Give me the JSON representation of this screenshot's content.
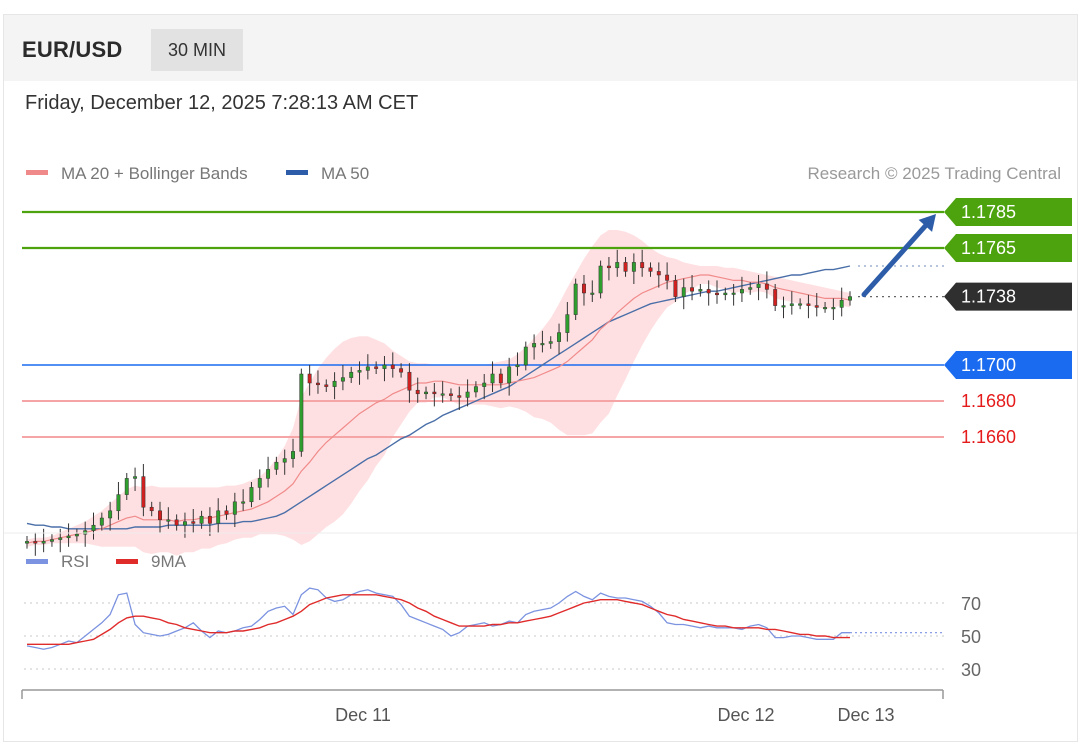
{
  "header": {
    "pair": "EUR/USD",
    "timeframe": "30 MIN",
    "datetime": "Friday, December 12, 2025 7:28:13 AM CET"
  },
  "legend": {
    "ma20_label": "MA 20 + Bollinger Bands",
    "ma50_label": "MA 50",
    "credit": "Research © 2025 Trading Central"
  },
  "rsi_legend": {
    "rsi_label": "RSI",
    "ma_label": "9MA"
  },
  "colors": {
    "resistance": "#4ca30d",
    "pivot": "#1a6bf0",
    "support": "#e51a1a",
    "support_line": "#f5a5a5",
    "current": "#2f2f2f",
    "candle_up": "#2e9e2e",
    "candle_down": "#d02020",
    "ma20": "#f08a8a",
    "bollinger": "#ffd6d8",
    "ma50": "#4a6fa8",
    "rsi": "#7b93e0",
    "rsi_ma": "#e02b2b",
    "arrow": "#2d5da8"
  },
  "chart_data": [
    {
      "type": "candlestick",
      "title": "EUR/USD 30 MIN",
      "x_tick_labels": [
        "Dec 11",
        "Dec 12",
        "Dec 13"
      ],
      "y_range": [
        1.162,
        1.181
      ],
      "levels": [
        {
          "value": 1.1785,
          "label": "1.1785",
          "kind": "resistance"
        },
        {
          "value": 1.1765,
          "label": "1.1765",
          "kind": "resistance"
        },
        {
          "value": 1.1738,
          "label": "1.1738",
          "kind": "current"
        },
        {
          "value": 1.17,
          "label": "1.1700",
          "kind": "pivot"
        },
        {
          "value": 1.168,
          "label": "1.1680",
          "kind": "support"
        },
        {
          "value": 1.166,
          "label": "1.1660",
          "kind": "support"
        }
      ],
      "close": [
        1.1602,
        1.1601,
        1.1602,
        1.1603,
        1.1604,
        1.1605,
        1.1606,
        1.1608,
        1.1611,
        1.1615,
        1.1619,
        1.1628,
        1.1637,
        1.1638,
        1.1621,
        1.1619,
        1.1614,
        1.1614,
        1.1611,
        1.1613,
        1.1612,
        1.1616,
        1.1612,
        1.1619,
        1.1617,
        1.1624,
        1.1624,
        1.1632,
        1.1637,
        1.1642,
        1.1646,
        1.1648,
        1.1652,
        1.1695,
        1.169,
        1.1689,
        1.1688,
        1.1691,
        1.1693,
        1.1696,
        1.1697,
        1.1699,
        1.1698,
        1.17,
        1.1698,
        1.1696,
        1.1686,
        1.1684,
        1.1685,
        1.1684,
        1.1684,
        1.1683,
        1.1682,
        1.1685,
        1.1688,
        1.169,
        1.1695,
        1.169,
        1.1699,
        1.17,
        1.171,
        1.1712,
        1.1712,
        1.1713,
        1.1718,
        1.1728,
        1.1745,
        1.174,
        1.174,
        1.1755,
        1.1754,
        1.1757,
        1.1752,
        1.1757,
        1.1754,
        1.1752,
        1.175,
        1.1747,
        1.1738,
        1.1743,
        1.1741,
        1.1742,
        1.174,
        1.1739,
        1.174,
        1.174,
        1.1742,
        1.1743,
        1.1745,
        1.1742,
        1.1733,
        1.1733,
        1.1734,
        1.1734,
        1.1733,
        1.1732,
        1.1732,
        1.1732,
        1.1736,
        1.1738
      ],
      "ma20": [
        1.1601,
        1.1602,
        1.1602,
        1.1603,
        1.1604,
        1.1605,
        1.1606,
        1.1607,
        1.1608,
        1.1609,
        1.1611,
        1.1613,
        1.1615,
        1.1616,
        1.1614,
        1.1614,
        1.1614,
        1.1614,
        1.1613,
        1.1614,
        1.1614,
        1.1615,
        1.1615,
        1.1616,
        1.1617,
        1.1618,
        1.1619,
        1.162,
        1.1622,
        1.1624,
        1.1627,
        1.163,
        1.1634,
        1.1641,
        1.1646,
        1.1652,
        1.1657,
        1.1661,
        1.1665,
        1.1669,
        1.1673,
        1.1676,
        1.1679,
        1.1681,
        1.1684,
        1.1686,
        1.1688,
        1.169,
        1.169,
        1.1691,
        1.1691,
        1.169,
        1.1689,
        1.1689,
        1.1689,
        1.1689,
        1.1689,
        1.1689,
        1.169,
        1.1691,
        1.1692,
        1.1693,
        1.1695,
        1.1697,
        1.1699,
        1.1702,
        1.1706,
        1.171,
        1.1714,
        1.172,
        1.1724,
        1.1729,
        1.1733,
        1.1737,
        1.174,
        1.1742,
        1.1744,
        1.1746,
        1.1747,
        1.1748,
        1.1749,
        1.175,
        1.175,
        1.1749,
        1.1748,
        1.1747,
        1.1747,
        1.1746,
        1.1746,
        1.1745,
        1.1743,
        1.1742,
        1.1741,
        1.174,
        1.1739,
        1.1738,
        1.1737,
        1.1737,
        1.1737,
        1.1736
      ],
      "bb_upper": [
        1.1603,
        1.1604,
        1.1604,
        1.1605,
        1.1607,
        1.1609,
        1.1611,
        1.1613,
        1.1616,
        1.1619,
        1.1623,
        1.1627,
        1.1631,
        1.1633,
        1.1632,
        1.1633,
        1.1632,
        1.1632,
        1.1632,
        1.1632,
        1.1632,
        1.1632,
        1.1632,
        1.1632,
        1.1633,
        1.1633,
        1.1634,
        1.1636,
        1.1638,
        1.1642,
        1.1648,
        1.1655,
        1.1665,
        1.1682,
        1.169,
        1.1698,
        1.1704,
        1.1709,
        1.1713,
        1.1715,
        1.1716,
        1.1716,
        1.1714,
        1.1712,
        1.1708,
        1.1705,
        1.1702,
        1.1701,
        1.1701,
        1.17,
        1.17,
        1.17,
        1.17,
        1.17,
        1.17,
        1.17,
        1.1701,
        1.1702,
        1.1703,
        1.1706,
        1.171,
        1.1715,
        1.172,
        1.1726,
        1.1734,
        1.1743,
        1.1751,
        1.1759,
        1.1766,
        1.1772,
        1.1775,
        1.1775,
        1.1774,
        1.1772,
        1.1769,
        1.1765,
        1.1762,
        1.176,
        1.1759,
        1.1757,
        1.1756,
        1.1755,
        1.1755,
        1.1755,
        1.1754,
        1.1754,
        1.1753,
        1.1752,
        1.1751,
        1.175,
        1.1749,
        1.1748,
        1.1747,
        1.1746,
        1.1745,
        1.1744,
        1.1743,
        1.1742,
        1.1741,
        1.174
      ],
      "bb_lower": [
        1.1599,
        1.16,
        1.16,
        1.1601,
        1.1601,
        1.1601,
        1.1601,
        1.1601,
        1.16,
        1.1599,
        1.1599,
        1.1599,
        1.1599,
        1.1599,
        1.1596,
        1.1595,
        1.1596,
        1.1596,
        1.1594,
        1.1596,
        1.1596,
        1.1598,
        1.1598,
        1.16,
        1.1601,
        1.1603,
        1.1604,
        1.1604,
        1.1606,
        1.1606,
        1.1606,
        1.1605,
        1.1603,
        1.16,
        1.1602,
        1.1606,
        1.161,
        1.1613,
        1.1617,
        1.1623,
        1.163,
        1.1636,
        1.1644,
        1.165,
        1.166,
        1.1667,
        1.1674,
        1.1679,
        1.1679,
        1.1682,
        1.1682,
        1.168,
        1.1678,
        1.1678,
        1.1678,
        1.1678,
        1.1677,
        1.1676,
        1.1677,
        1.1676,
        1.1674,
        1.1671,
        1.167,
        1.1668,
        1.1664,
        1.1661,
        1.1661,
        1.1661,
        1.1662,
        1.1668,
        1.1673,
        1.1683,
        1.1692,
        1.1702,
        1.1711,
        1.1719,
        1.1726,
        1.1732,
        1.1735,
        1.1739,
        1.1742,
        1.1745,
        1.1745,
        1.1743,
        1.1742,
        1.174,
        1.1741,
        1.174,
        1.1741,
        1.174,
        1.1737,
        1.1736,
        1.1735,
        1.1734,
        1.1733,
        1.1732,
        1.1731,
        1.1732,
        1.1733,
        1.1732
      ],
      "ma50": [
        1.1612,
        1.1611,
        1.1611,
        1.161,
        1.161,
        1.1609,
        1.1609,
        1.1609,
        1.1609,
        1.1609,
        1.1609,
        1.1609,
        1.1609,
        1.161,
        1.161,
        1.161,
        1.161,
        1.1611,
        1.1611,
        1.1611,
        1.1611,
        1.1611,
        1.1611,
        1.1612,
        1.1612,
        1.1612,
        1.1613,
        1.1613,
        1.1614,
        1.1615,
        1.1616,
        1.1618,
        1.1621,
        1.1624,
        1.1627,
        1.163,
        1.1633,
        1.1636,
        1.1639,
        1.1642,
        1.1645,
        1.1648,
        1.165,
        1.1653,
        1.1656,
        1.1659,
        1.1661,
        1.1664,
        1.1667,
        1.1669,
        1.1672,
        1.1674,
        1.1676,
        1.1678,
        1.168,
        1.1682,
        1.1684,
        1.1686,
        1.1688,
        1.1691,
        1.1694,
        1.1697,
        1.17,
        1.1703,
        1.1706,
        1.1709,
        1.1712,
        1.1715,
        1.1718,
        1.1721,
        1.1724,
        1.1726,
        1.1728,
        1.173,
        1.1732,
        1.1734,
        1.1735,
        1.1736,
        1.1737,
        1.1738,
        1.1739,
        1.174,
        1.1741,
        1.1741,
        1.1742,
        1.1743,
        1.1744,
        1.1745,
        1.1746,
        1.1747,
        1.1748,
        1.1749,
        1.175,
        1.175,
        1.1751,
        1.1752,
        1.1753,
        1.1753,
        1.1754,
        1.1755
      ]
    },
    {
      "type": "line",
      "title": "RSI",
      "y_tick_labels": [
        "70",
        "50",
        "30"
      ],
      "y_range": [
        20,
        85
      ],
      "series": [
        {
          "name": "RSI",
          "values": [
            44,
            43,
            42,
            43,
            45,
            47,
            46,
            50,
            54,
            58,
            63,
            75,
            76,
            57,
            52,
            51,
            50,
            51,
            53,
            55,
            58,
            53,
            49,
            53,
            52,
            53,
            55,
            56,
            60,
            65,
            67,
            68,
            63,
            75,
            79,
            78,
            73,
            71,
            72,
            75,
            77,
            78,
            76,
            75,
            74,
            69,
            62,
            60,
            58,
            56,
            54,
            50,
            52,
            56,
            57,
            58,
            56,
            57,
            59,
            58,
            63,
            65,
            66,
            67,
            70,
            74,
            77,
            74,
            72,
            76,
            74,
            73,
            73,
            72,
            71,
            68,
            64,
            58,
            57,
            57,
            56,
            55,
            56,
            55,
            55,
            55,
            54,
            56,
            57,
            55,
            49,
            49,
            50,
            50,
            49,
            48,
            48,
            48,
            52,
            52
          ]
        },
        {
          "name": "9MA",
          "values": [
            45,
            45,
            45,
            45,
            45,
            45,
            46,
            47,
            48,
            51,
            54,
            58,
            61,
            62,
            62,
            61,
            60,
            58,
            57,
            55,
            54,
            53,
            52,
            52,
            52,
            53,
            53,
            54,
            55,
            57,
            58,
            60,
            62,
            65,
            69,
            71,
            73,
            74,
            75,
            75,
            75,
            75,
            75,
            74,
            73,
            72,
            70,
            67,
            65,
            62,
            60,
            58,
            56,
            56,
            56,
            56,
            57,
            57,
            58,
            58,
            59,
            60,
            61,
            62,
            64,
            66,
            68,
            70,
            71,
            72,
            72,
            72,
            71,
            70,
            69,
            67,
            65,
            63,
            62,
            60,
            59,
            58,
            57,
            56,
            56,
            55,
            55,
            55,
            55,
            54,
            54,
            53,
            52,
            51,
            51,
            50,
            50,
            49,
            49,
            49
          ]
        }
      ]
    }
  ]
}
